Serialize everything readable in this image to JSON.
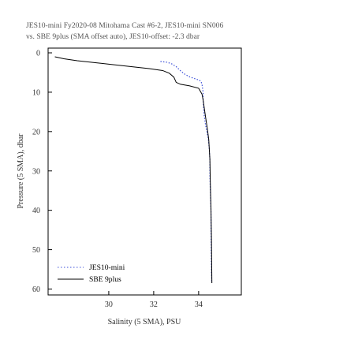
{
  "chart_data": {
    "type": "line",
    "title_lines": [
      "JES10-mini Fy2020-08 Mitohama Cast #6-2, JES10-mini SN006",
      "vs. SBE 9plus (SMA  offset  auto), JES10-offset: -2.3 dbar"
    ],
    "xlabel": "Salinity (5 SMA), PSU",
    "ylabel": "Pressure (5 SMA), dbar",
    "xlim": [
      27.3,
      35.9
    ],
    "ylim": [
      61.5,
      -1.2
    ],
    "y_inverted": true,
    "xticks": [
      30,
      32,
      34
    ],
    "yticks": [
      0,
      10,
      20,
      30,
      40,
      50,
      60
    ],
    "legend_position": "bottom-left",
    "series": [
      {
        "name": "JES10-mini",
        "color": "#3b4fd8",
        "style": "dotted-line",
        "x": [
          32.3,
          32.6,
          32.8,
          33.0,
          33.2,
          33.4,
          33.6,
          33.8,
          34.0,
          34.1,
          34.15,
          34.2,
          34.2,
          34.22,
          34.25,
          34.3,
          34.35,
          34.42,
          34.47,
          34.5,
          34.5,
          34.52,
          34.55,
          34.55,
          34.56,
          34.57,
          34.58
        ],
        "y": [
          2.2,
          2.4,
          2.8,
          3.5,
          4.6,
          5.5,
          6.1,
          6.5,
          6.9,
          7.2,
          8.0,
          10.0,
          12.0,
          14.0,
          16.0,
          18.0,
          19.5,
          21.5,
          24.0,
          27.0,
          31.0,
          35.0,
          40.0,
          45.0,
          50.0,
          55.0,
          58.5
        ]
      },
      {
        "name": "SBE 9plus",
        "color": "#000000",
        "style": "solid",
        "x": [
          27.6,
          28.0,
          28.6,
          29.4,
          30.2,
          31.0,
          31.8,
          32.4,
          32.7,
          32.9,
          33.0,
          33.2,
          33.6,
          34.0,
          34.15,
          34.2,
          34.25,
          34.3,
          34.38,
          34.45,
          34.5,
          34.52,
          34.55,
          34.57,
          34.58,
          34.59
        ],
        "y": [
          1.0,
          1.5,
          2.0,
          2.5,
          3.0,
          3.5,
          4.0,
          4.5,
          5.2,
          6.2,
          7.5,
          8.0,
          8.4,
          9.0,
          10.5,
          12.0,
          14.0,
          16.0,
          19.0,
          22.0,
          27.0,
          33.0,
          40.0,
          47.0,
          53.0,
          58.5
        ]
      }
    ]
  }
}
